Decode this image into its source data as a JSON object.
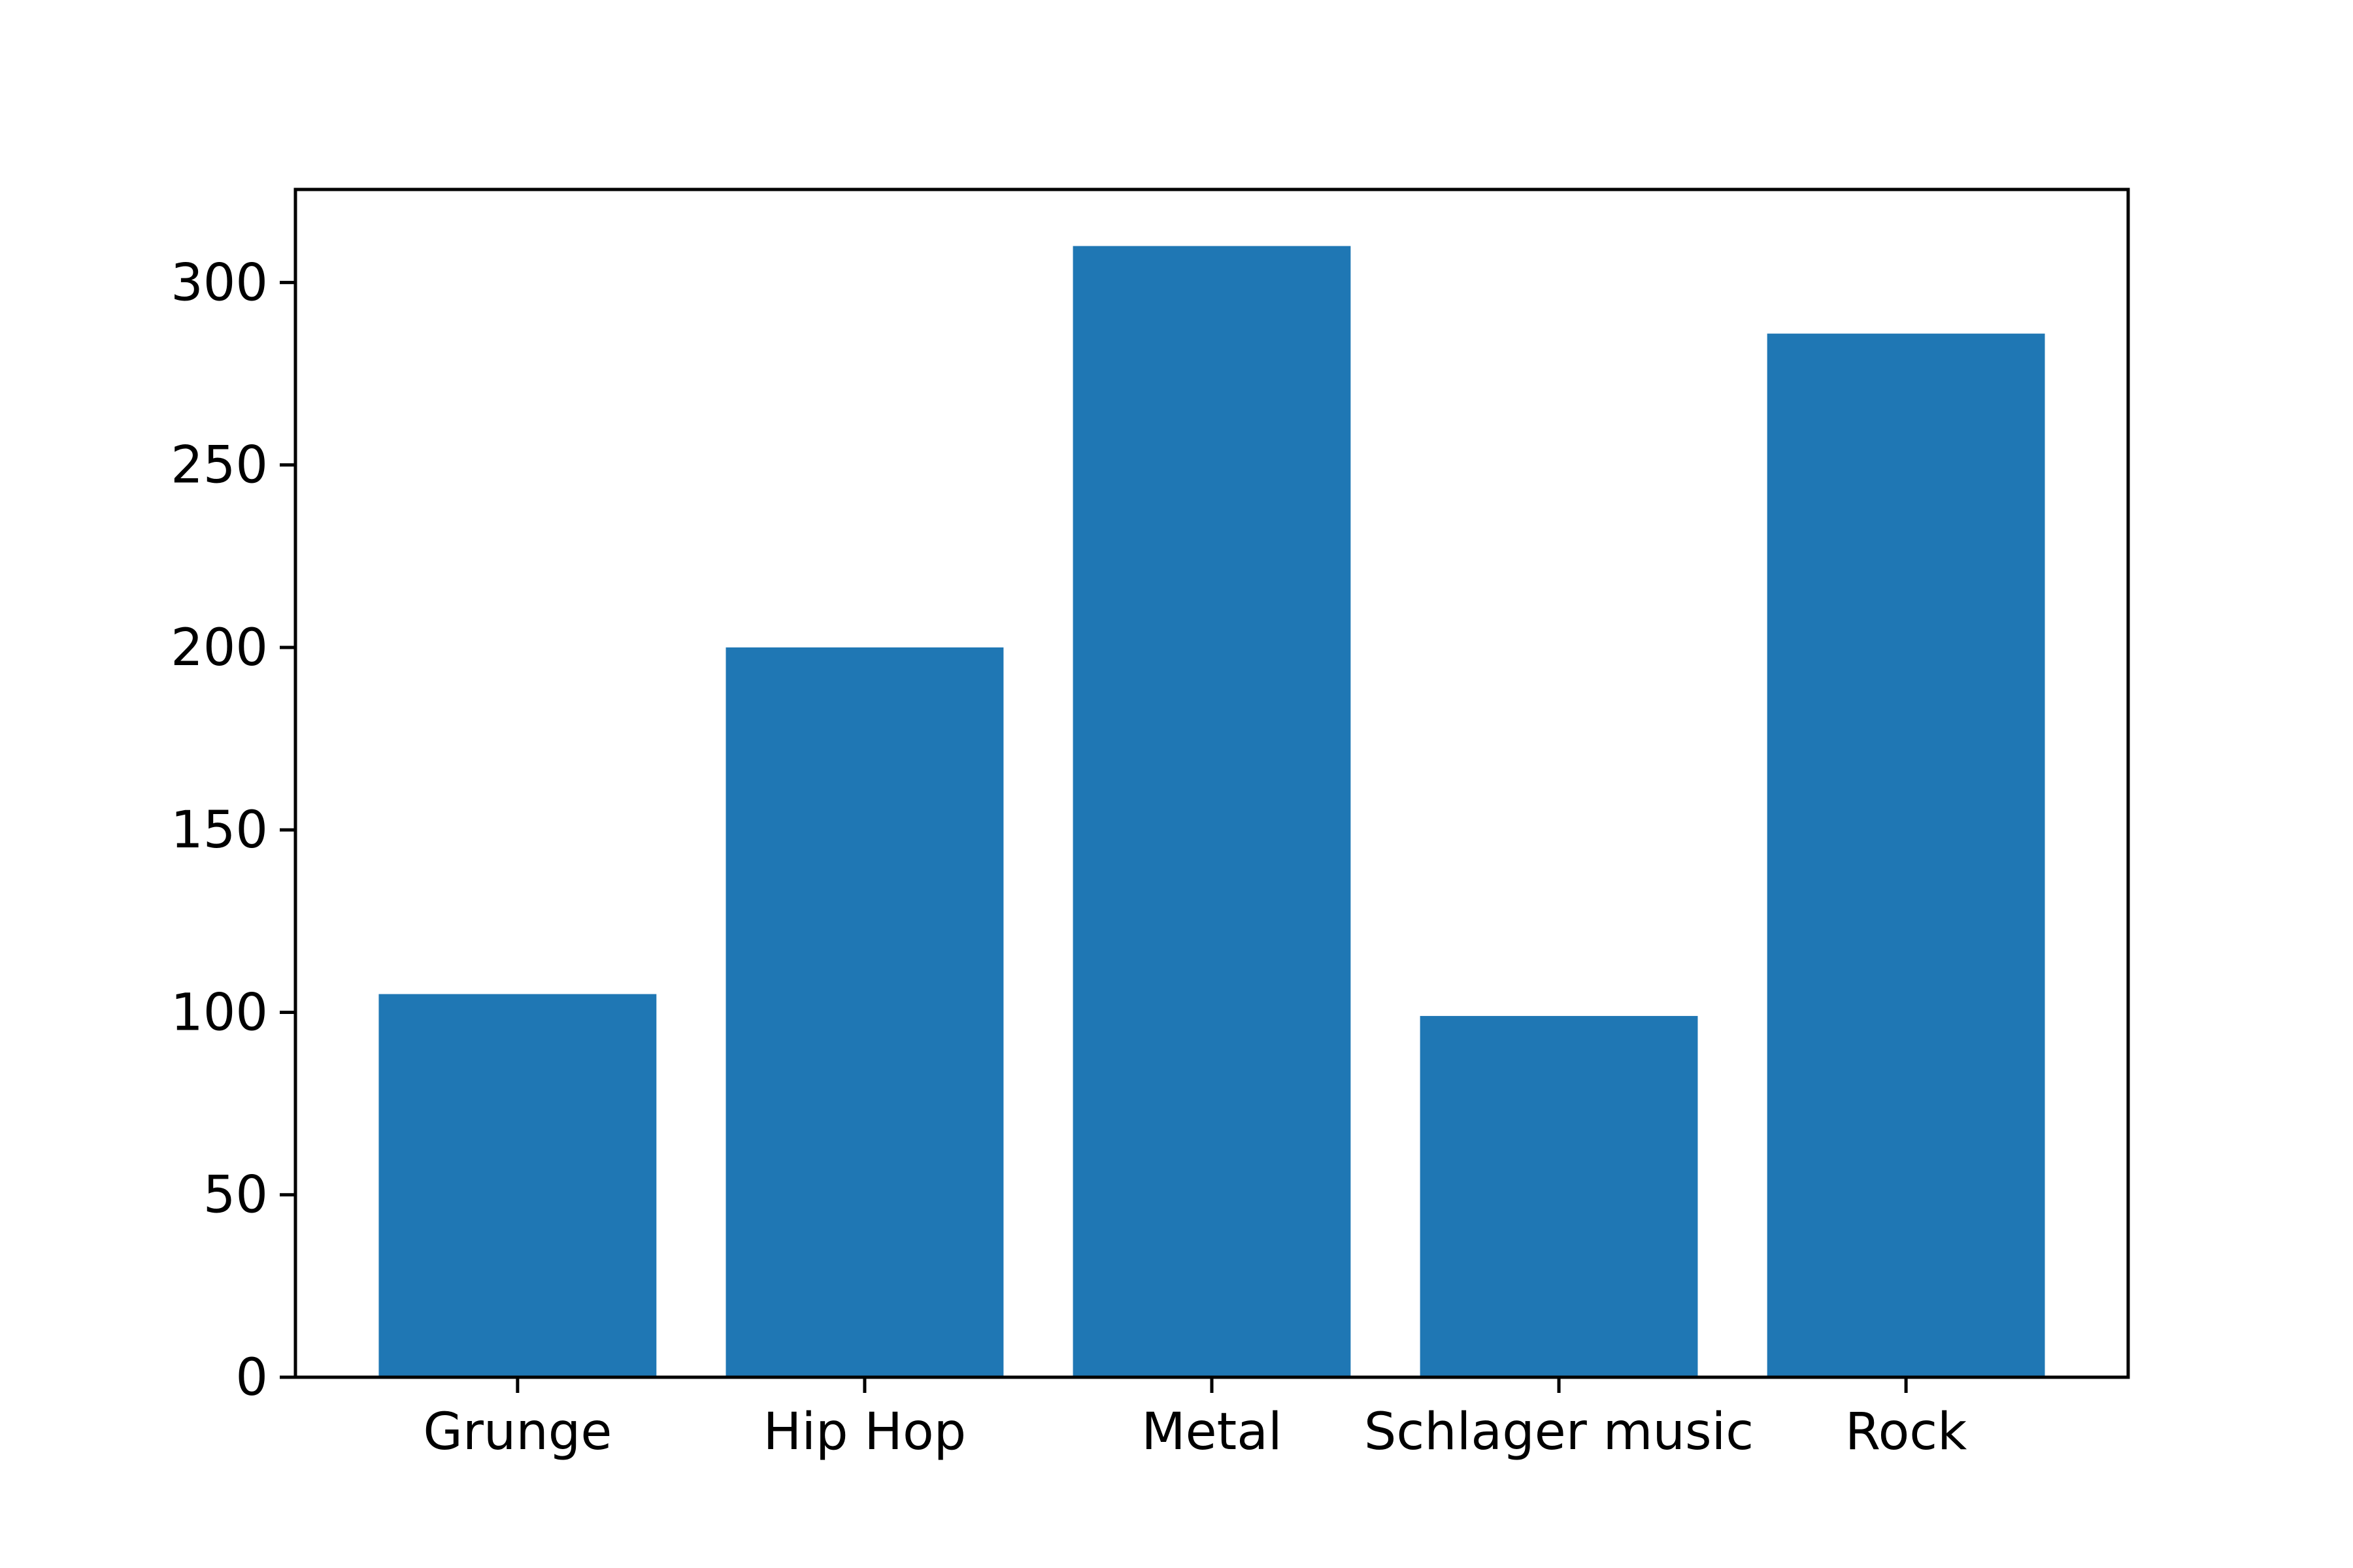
{
  "chart_data": {
    "type": "bar",
    "title": "",
    "xlabel": "",
    "ylabel": "",
    "categories": [
      "Grunge",
      "Hip Hop",
      "Metal",
      "Schlager music",
      "Rock"
    ],
    "values": [
      105,
      200,
      310,
      99,
      286
    ],
    "ylim": [
      0,
      325.5
    ],
    "yticks": [
      0,
      50,
      100,
      150,
      200,
      250,
      300
    ],
    "ytick_labels": [
      "0",
      "50",
      "100",
      "150",
      "200",
      "250",
      "300"
    ],
    "grid": false,
    "legend": "none",
    "bar_color": "#1f77b4"
  }
}
